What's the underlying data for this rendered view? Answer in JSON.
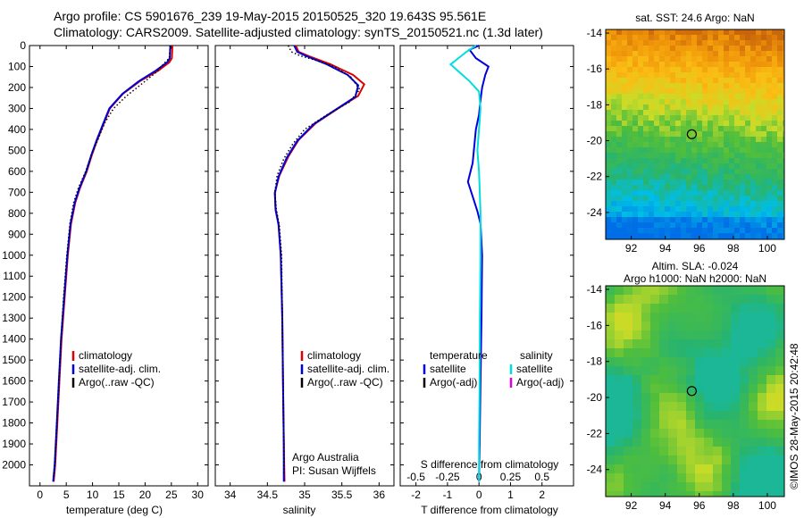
{
  "title": {
    "line1": "Argo profile: CS 5901676_239 19-May-2015 20150525_320 19.643S 95.561E",
    "line2": "Climatology: CARS2009. Satellite-adjusted climatology: synTS_20150521.nc (1.3d later)"
  },
  "credit": "©IMOS 28-May-2015 20:42:48",
  "colors": {
    "climatology": "#dd0000",
    "satellite": "#0000dd",
    "argo": "#000000",
    "sat_diff_s": "#00dddd",
    "argo_diff_s": "#dd00dd"
  },
  "chart_data": [
    {
      "id": "temperature",
      "type": "line",
      "xlabel": "temperature (deg C)",
      "ylabel": "",
      "xlim": [
        -2,
        32
      ],
      "ylim": [
        0,
        2100
      ],
      "xticks": [
        0,
        5,
        10,
        15,
        20,
        25,
        30
      ],
      "xticklabels": [
        "0",
        "5",
        "10",
        "15",
        "20",
        "25",
        "30"
      ],
      "yticks": [
        0,
        100,
        200,
        300,
        400,
        500,
        600,
        700,
        800,
        900,
        1000,
        1100,
        1200,
        1300,
        1400,
        1500,
        1600,
        1700,
        1800,
        1900,
        2000
      ],
      "yticklabels": [
        "0",
        "100",
        "200",
        "300",
        "400",
        "500",
        "600",
        "700",
        "800",
        "900",
        "1000",
        "1100",
        "1200",
        "1300",
        "1400",
        "1500",
        "1600",
        "1700",
        "1800",
        "1900",
        "2000"
      ],
      "legend": [
        "climatology",
        "satellite-adj. clim.",
        "Argo(..raw -QC)"
      ],
      "series": [
        {
          "name": "climatology",
          "color": "#dd0000",
          "style": "solid",
          "points": [
            [
              25.2,
              0
            ],
            [
              25.1,
              60
            ],
            [
              24.6,
              80
            ],
            [
              22.5,
              120
            ],
            [
              19.0,
              170
            ],
            [
              15.8,
              230
            ],
            [
              13.3,
              300
            ],
            [
              12.0,
              380
            ],
            [
              10.9,
              450
            ],
            [
              9.9,
              520
            ],
            [
              8.9,
              600
            ],
            [
              7.6,
              680
            ],
            [
              6.7,
              750
            ],
            [
              5.9,
              850
            ],
            [
              5.3,
              1000
            ],
            [
              4.7,
              1200
            ],
            [
              4.1,
              1400
            ],
            [
              3.7,
              1600
            ],
            [
              3.3,
              1800
            ],
            [
              2.9,
              2000
            ],
            [
              2.6,
              2080
            ]
          ]
        },
        {
          "name": "satellite-adj. clim.",
          "color": "#0000dd",
          "style": "solid",
          "points": [
            [
              24.8,
              0
            ],
            [
              24.7,
              60
            ],
            [
              24.2,
              80
            ],
            [
              22.0,
              120
            ],
            [
              18.8,
              170
            ],
            [
              15.7,
              230
            ],
            [
              13.2,
              300
            ],
            [
              11.9,
              380
            ],
            [
              10.8,
              450
            ],
            [
              9.8,
              520
            ],
            [
              8.8,
              600
            ],
            [
              7.5,
              680
            ],
            [
              6.6,
              750
            ],
            [
              5.8,
              850
            ],
            [
              5.2,
              1000
            ],
            [
              4.6,
              1200
            ],
            [
              4.0,
              1400
            ],
            [
              3.6,
              1600
            ],
            [
              3.2,
              1800
            ],
            [
              2.8,
              2000
            ],
            [
              2.5,
              2080
            ]
          ]
        },
        {
          "name": "Argo(..raw -QC)",
          "color": "#000000",
          "style": "dotted",
          "points": [
            [
              24.8,
              0
            ],
            [
              24.6,
              60
            ],
            [
              23.8,
              80
            ],
            [
              22.0,
              130
            ],
            [
              19.5,
              180
            ],
            [
              16.5,
              240
            ],
            [
              14.0,
              300
            ],
            [
              12.3,
              370
            ],
            [
              11.0,
              450
            ],
            [
              9.8,
              520
            ],
            [
              8.7,
              600
            ],
            [
              7.3,
              680
            ],
            [
              6.4,
              750
            ],
            [
              5.7,
              850
            ],
            [
              5.1,
              1000
            ],
            [
              4.5,
              1200
            ],
            [
              4.0,
              1400
            ],
            [
              3.6,
              1600
            ],
            [
              3.2,
              1800
            ],
            [
              2.8,
              2000
            ],
            [
              2.6,
              2060
            ]
          ]
        }
      ]
    },
    {
      "id": "salinity",
      "type": "line",
      "xlabel": "salinity",
      "xlim": [
        33.8,
        36.2
      ],
      "ylim": [
        0,
        2100
      ],
      "xticks": [
        34,
        34.5,
        35,
        35.5,
        36
      ],
      "xticklabels": [
        "34",
        "34.5",
        "35",
        "35.5",
        "36"
      ],
      "legend": [
        "climatology",
        "satellite-adj. clim.",
        "Argo(..raw -QC)"
      ],
      "annotation": [
        "Argo Australia",
        "PI: Susan Wijffels"
      ],
      "series": [
        {
          "name": "climatology",
          "color": "#dd0000",
          "style": "solid",
          "points": [
            [
              34.88,
              0
            ],
            [
              34.92,
              30
            ],
            [
              35.05,
              50
            ],
            [
              35.35,
              90
            ],
            [
              35.65,
              140
            ],
            [
              35.8,
              185
            ],
            [
              35.72,
              240
            ],
            [
              35.45,
              300
            ],
            [
              35.15,
              370
            ],
            [
              34.92,
              450
            ],
            [
              34.78,
              530
            ],
            [
              34.66,
              620
            ],
            [
              34.6,
              700
            ],
            [
              34.61,
              780
            ],
            [
              34.65,
              850
            ],
            [
              34.68,
              1000
            ],
            [
              34.7,
              1300
            ],
            [
              34.71,
              1600
            ],
            [
              34.72,
              1900
            ],
            [
              34.73,
              2080
            ]
          ]
        },
        {
          "name": "satellite-adj. clim.",
          "color": "#0000dd",
          "style": "solid",
          "points": [
            [
              34.86,
              0
            ],
            [
              34.9,
              30
            ],
            [
              35.02,
              50
            ],
            [
              35.3,
              90
            ],
            [
              35.58,
              140
            ],
            [
              35.72,
              190
            ],
            [
              35.68,
              245
            ],
            [
              35.42,
              305
            ],
            [
              35.12,
              375
            ],
            [
              34.9,
              455
            ],
            [
              34.76,
              535
            ],
            [
              34.65,
              625
            ],
            [
              34.6,
              705
            ],
            [
              34.61,
              785
            ],
            [
              34.65,
              855
            ],
            [
              34.68,
              1000
            ],
            [
              34.7,
              1300
            ],
            [
              34.71,
              1600
            ],
            [
              34.72,
              1900
            ],
            [
              34.72,
              2080
            ]
          ]
        },
        {
          "name": "Argo(..raw -QC)",
          "color": "#000000",
          "style": "dotted",
          "points": [
            [
              34.78,
              0
            ],
            [
              34.82,
              30
            ],
            [
              34.95,
              50
            ],
            [
              35.15,
              70
            ],
            [
              35.4,
              100
            ],
            [
              35.62,
              150
            ],
            [
              35.74,
              210
            ],
            [
              35.6,
              270
            ],
            [
              35.3,
              330
            ],
            [
              35.0,
              400
            ],
            [
              34.84,
              470
            ],
            [
              34.72,
              540
            ],
            [
              34.63,
              620
            ],
            [
              34.6,
              700
            ],
            [
              34.62,
              780
            ],
            [
              34.66,
              860
            ],
            [
              34.69,
              1000
            ],
            [
              34.7,
              1300
            ],
            [
              34.71,
              1600
            ],
            [
              34.72,
              1900
            ],
            [
              34.72,
              2050
            ]
          ]
        }
      ]
    },
    {
      "id": "difference",
      "type": "line",
      "xlabel": "T difference from climatology",
      "xlabel_top": "S difference from climatology",
      "xlim": [
        -2.5,
        3
      ],
      "ylim": [
        0,
        2100
      ],
      "xticks": [
        -2,
        -1,
        0,
        1,
        2
      ],
      "xticklabels": [
        "-2",
        "-1",
        "0",
        "1",
        "2"
      ],
      "sticks_at": [
        -2,
        -1,
        0,
        1,
        2
      ],
      "sticklabels": [
        "-0.5",
        "-0.25",
        "0",
        "0.25",
        "0.5"
      ],
      "legend_groups": [
        {
          "title": "temperature",
          "items": [
            "satellite",
            "Argo(-adj)"
          ]
        },
        {
          "title": "salinity",
          "items": [
            "satellite",
            "Argo(-adj)"
          ]
        }
      ],
      "series": [
        {
          "name": "temperature satellite",
          "color": "#0000dd",
          "style": "solid",
          "points": [
            [
              0.0,
              0
            ],
            [
              -0.3,
              20
            ],
            [
              -0.1,
              60
            ],
            [
              0.3,
              100
            ],
            [
              0.2,
              140
            ],
            [
              0.1,
              200
            ],
            [
              0.05,
              260
            ],
            [
              0.0,
              330
            ],
            [
              -0.1,
              400
            ],
            [
              -0.15,
              480
            ],
            [
              -0.2,
              560
            ],
            [
              -0.35,
              650
            ],
            [
              -0.2,
              720
            ],
            [
              -0.05,
              790
            ],
            [
              0.05,
              850
            ],
            [
              0.1,
              1000
            ],
            [
              0.08,
              1300
            ],
            [
              0.05,
              1600
            ],
            [
              0.02,
              1900
            ],
            [
              0.0,
              2080
            ]
          ]
        },
        {
          "name": "salinity satellite",
          "color": "#00dddd",
          "style": "solid",
          "points": [
            [
              -0.1,
              0
            ],
            [
              -0.4,
              30
            ],
            [
              -0.9,
              90
            ],
            [
              -0.6,
              130
            ],
            [
              -0.3,
              170
            ],
            [
              0.0,
              220
            ],
            [
              0.05,
              300
            ],
            [
              0.0,
              400
            ],
            [
              -0.05,
              500
            ],
            [
              0.0,
              600
            ],
            [
              0.05,
              800
            ],
            [
              0.05,
              1000
            ],
            [
              0.03,
              1300
            ],
            [
              0.02,
              1600
            ],
            [
              0.0,
              1900
            ],
            [
              0.0,
              2080
            ]
          ]
        }
      ]
    }
  ],
  "maps": [
    {
      "id": "sst-map",
      "title": "sat. SST: 24.6  Argo: NaN",
      "xticks": [
        92,
        94,
        96,
        98,
        100
      ],
      "yticks": [
        -14,
        -16,
        -18,
        -20,
        -22,
        -24
      ],
      "xlim": [
        90.5,
        101
      ],
      "ylim": [
        -25.5,
        -13.8
      ],
      "marker": [
        95.56,
        -19.64
      ]
    },
    {
      "id": "sla-map",
      "title": "Altim. SLA: -0.024",
      "title2": "Argo h1000: NaN h2000: NaN",
      "xticks": [
        92,
        94,
        96,
        98,
        100
      ],
      "yticks": [
        -14,
        -16,
        -18,
        -20,
        -22,
        -24
      ],
      "xlim": [
        90.5,
        101
      ],
      "ylim": [
        -25.5,
        -13.8
      ],
      "marker": [
        95.56,
        -19.64
      ]
    }
  ]
}
